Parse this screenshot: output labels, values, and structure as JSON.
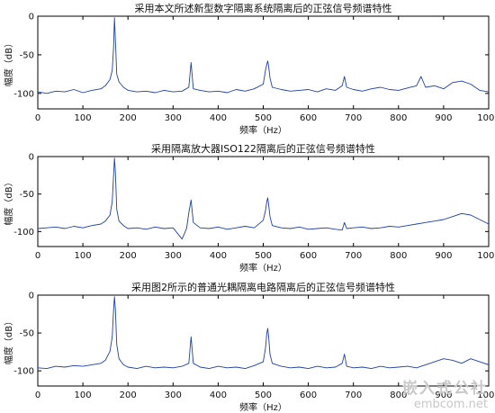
{
  "watermark": {
    "name": "嵌入式公社",
    "url": "embcom.net"
  },
  "chart_data": [
    {
      "type": "line",
      "title": "采用本文所述新型数字隔离系统隔离后的正弦信号频谱特性",
      "xlabel": "频率（Hz）",
      "ylabel": "幅度（dB）",
      "xlim": [
        0,
        1000
      ],
      "ylim": [
        -120,
        0
      ],
      "xticks": [
        "0",
        "100",
        "200",
        "300",
        "400",
        "500",
        "600",
        "700",
        "800",
        "900",
        "1000"
      ],
      "yticks": [
        "0",
        "-50",
        "-100"
      ],
      "color": "#1f3fa8",
      "x": [
        0,
        20,
        40,
        60,
        80,
        100,
        120,
        140,
        150,
        160,
        165,
        168,
        170,
        172,
        175,
        180,
        190,
        200,
        220,
        240,
        260,
        280,
        300,
        320,
        335,
        340,
        345,
        360,
        380,
        400,
        420,
        440,
        460,
        480,
        500,
        505,
        508,
        510,
        512,
        515,
        520,
        540,
        560,
        580,
        600,
        620,
        640,
        660,
        675,
        680,
        685,
        700,
        720,
        740,
        760,
        780,
        800,
        820,
        840,
        850,
        860,
        880,
        900,
        920,
        940,
        960,
        980,
        1000
      ],
      "y": [
        -98,
        -100,
        -97,
        -98,
        -95,
        -99,
        -96,
        -94,
        -90,
        -82,
        -70,
        -40,
        -2,
        -30,
        -75,
        -85,
        -92,
        -96,
        -98,
        -97,
        -99,
        -96,
        -98,
        -97,
        -92,
        -60,
        -94,
        -96,
        -98,
        -97,
        -99,
        -95,
        -97,
        -94,
        -88,
        -70,
        -62,
        -58,
        -65,
        -80,
        -92,
        -95,
        -97,
        -96,
        -95,
        -98,
        -94,
        -96,
        -90,
        -78,
        -92,
        -95,
        -97,
        -94,
        -92,
        -95,
        -96,
        -93,
        -90,
        -78,
        -92,
        -90,
        -94,
        -86,
        -84,
        -88,
        -96,
        -98
      ]
    },
    {
      "type": "line",
      "title": "采用隔离放大器ISO122隔离后的正弦信号频谱特性",
      "xlabel": "频率（Hz）",
      "ylabel": "幅度（dB）",
      "xlim": [
        0,
        1000
      ],
      "ylim": [
        -120,
        0
      ],
      "xticks": [
        "0",
        "100",
        "200",
        "300",
        "400",
        "500",
        "600",
        "700",
        "800",
        "900",
        "1000"
      ],
      "yticks": [
        "0",
        "-50",
        "-100"
      ],
      "color": "#1f3fa8",
      "x": [
        0,
        20,
        40,
        60,
        80,
        100,
        120,
        140,
        150,
        160,
        165,
        168,
        170,
        172,
        175,
        180,
        190,
        200,
        220,
        240,
        260,
        280,
        300,
        320,
        330,
        335,
        340,
        345,
        360,
        380,
        400,
        420,
        440,
        460,
        480,
        500,
        505,
        508,
        510,
        512,
        515,
        520,
        540,
        560,
        580,
        600,
        620,
        640,
        660,
        675,
        680,
        685,
        700,
        720,
        740,
        760,
        780,
        800,
        820,
        840,
        860,
        880,
        900,
        920,
        940,
        960,
        980,
        1000
      ],
      "y": [
        -96,
        -95,
        -94,
        -96,
        -93,
        -95,
        -92,
        -90,
        -86,
        -78,
        -60,
        -25,
        -2,
        -20,
        -70,
        -86,
        -92,
        -96,
        -95,
        -97,
        -94,
        -96,
        -95,
        -110,
        -96,
        -75,
        -58,
        -88,
        -95,
        -96,
        -94,
        -97,
        -95,
        -93,
        -95,
        -85,
        -72,
        -60,
        -55,
        -64,
        -80,
        -92,
        -95,
        -96,
        -94,
        -97,
        -96,
        -95,
        -97,
        -98,
        -88,
        -96,
        -95,
        -94,
        -96,
        -95,
        -93,
        -94,
        -92,
        -90,
        -88,
        -86,
        -84,
        -80,
        -76,
        -78,
        -84,
        -90
      ]
    },
    {
      "type": "line",
      "title": "采用图2所示的普通光耦隔离电路隔离后的正弦信号频谱特性",
      "xlabel": "频率（Hz）",
      "ylabel": "幅度（dB）",
      "xlim": [
        0,
        1000
      ],
      "ylim": [
        -120,
        0
      ],
      "xticks": [
        "0",
        "100",
        "200",
        "300",
        "400",
        "500",
        "600",
        "700",
        "800",
        "900",
        "1000"
      ],
      "yticks": [
        "0",
        "-50",
        "-100"
      ],
      "color": "#1f3fa8",
      "x": [
        0,
        20,
        40,
        60,
        80,
        100,
        120,
        140,
        150,
        160,
        165,
        168,
        170,
        172,
        175,
        180,
        190,
        200,
        220,
        240,
        260,
        280,
        300,
        320,
        335,
        340,
        345,
        360,
        380,
        400,
        420,
        440,
        460,
        480,
        500,
        505,
        508,
        510,
        512,
        515,
        520,
        540,
        560,
        580,
        600,
        620,
        640,
        660,
        675,
        680,
        685,
        700,
        720,
        740,
        760,
        780,
        800,
        820,
        840,
        860,
        880,
        900,
        920,
        940,
        960,
        980,
        1000
      ],
      "y": [
        -96,
        -97,
        -94,
        -95,
        -93,
        -94,
        -92,
        -90,
        -86,
        -74,
        -55,
        -20,
        -2,
        -18,
        -65,
        -84,
        -92,
        -95,
        -97,
        -94,
        -96,
        -95,
        -96,
        -94,
        -90,
        -55,
        -90,
        -95,
        -97,
        -94,
        -96,
        -95,
        -97,
        -93,
        -88,
        -70,
        -50,
        -44,
        -55,
        -78,
        -90,
        -94,
        -96,
        -95,
        -97,
        -94,
        -96,
        -95,
        -90,
        -78,
        -94,
        -96,
        -95,
        -97,
        -94,
        -96,
        -95,
        -94,
        -96,
        -92,
        -88,
        -84,
        -86,
        -90,
        -84,
        -88,
        -92
      ]
    }
  ]
}
